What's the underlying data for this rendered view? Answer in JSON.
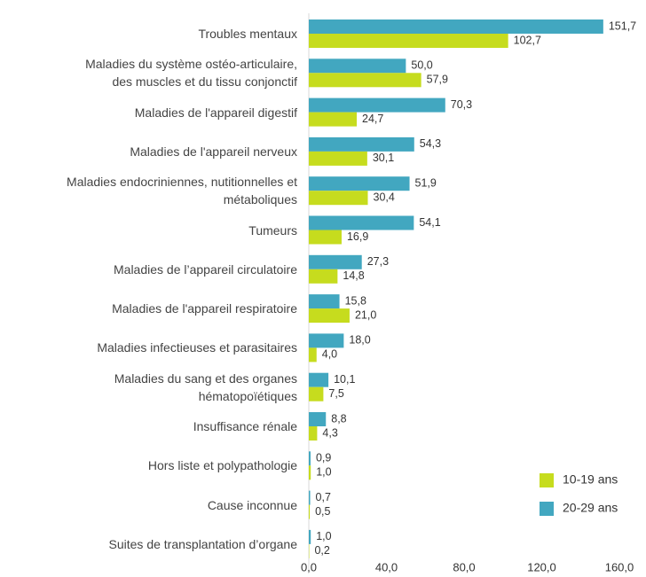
{
  "chart_data": {
    "type": "hbar",
    "categories": [
      "Troubles mentaux",
      "Maladies du système ostéo-articulaire,\ndes muscles et du tissu conjonctif",
      "Maladies de l'appareil digestif",
      "Maladies de l'appareil nerveux",
      "Maladies  endocriniennes, nutitionnelles et\nmétaboliques",
      "Tumeurs",
      "Maladies de l’appareil circulatoire",
      "Maladies de l'appareil respiratoire",
      "Maladies infectieuses et parasitaires",
      "Maladies  du sang et des organes\nhématopoïétiques",
      "Insuffisance rénale",
      "Hors liste et polypathologie",
      "Cause inconnue",
      "Suites de transplantation d’organe"
    ],
    "series": [
      {
        "name": "10-19 ans",
        "color": "#c6dc1e",
        "values": [
          102.7,
          57.9,
          24.7,
          30.1,
          30.4,
          16.9,
          14.8,
          21.0,
          4.0,
          7.5,
          4.3,
          1.0,
          0.5,
          0.2
        ],
        "value_labels": [
          "102,7",
          "57,9",
          "24,7",
          "30,1",
          "30,4",
          "16,9",
          "14,8",
          "21,0",
          "4,0",
          "7,5",
          "4,3",
          "1,0",
          "0,5",
          "0,2"
        ]
      },
      {
        "name": "20-29 ans",
        "color": "#42a7c0",
        "values": [
          151.7,
          50.0,
          70.3,
          54.3,
          51.9,
          54.1,
          27.3,
          15.8,
          18.0,
          10.1,
          8.8,
          0.9,
          0.7,
          1.0
        ],
        "value_labels": [
          "151,7",
          "50,0",
          "70,3",
          "54,3",
          "51,9",
          "54,1",
          "27,3",
          "15,8",
          "18,0",
          "10,1",
          "8,8",
          "0,9",
          "0,7",
          "1,0"
        ]
      }
    ],
    "xlim": [
      0,
      160
    ],
    "xticks": [
      {
        "value": 0,
        "label": "0,0"
      },
      {
        "value": 40,
        "label": "40,0"
      },
      {
        "value": 80,
        "label": "80,0"
      },
      {
        "value": 120,
        "label": "120,0"
      },
      {
        "value": 160,
        "label": "160,0"
      }
    ],
    "legend": "bottom-right"
  }
}
